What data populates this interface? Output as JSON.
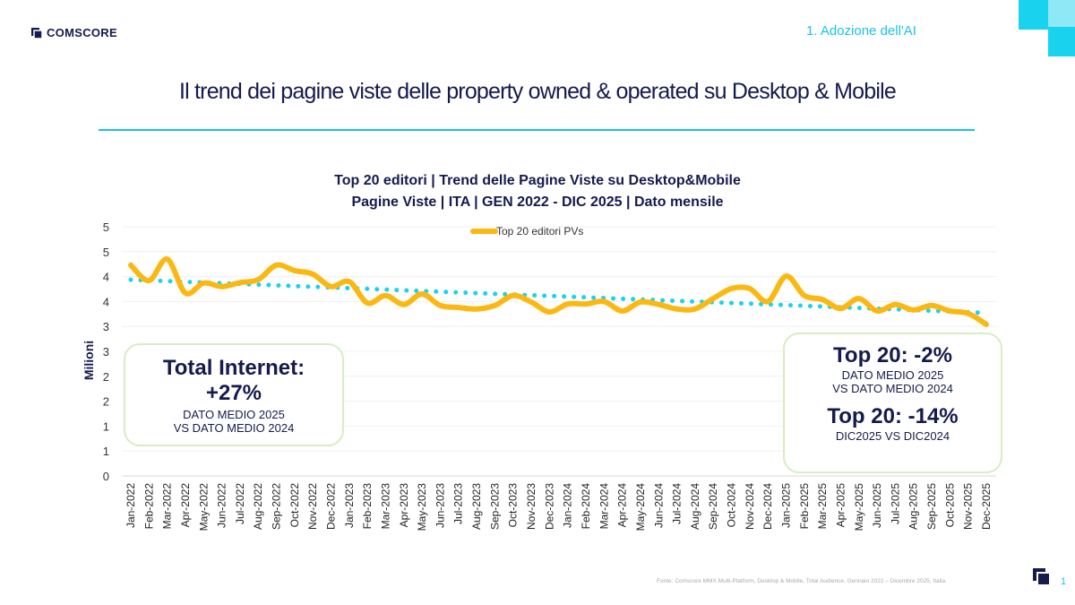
{
  "header": {
    "logo_text": "COMSCORE",
    "section": "1. Adozione dell'AI"
  },
  "page_title": "Il trend dei pagine viste delle property owned & operated su Desktop & Mobile",
  "colors": {
    "accent": "#19c3e6",
    "navy": "#141b4d",
    "series": "#fbb812",
    "trend": "#19d3ee"
  },
  "chart_data": {
    "type": "line",
    "title_line1": "Top 20 editori | Trend delle Pagine Viste su Desktop&Mobile",
    "title_line2": "Pagine Viste | ITA | GEN 2022 - DIC 2025 | Dato mensile",
    "ylabel": "Milioni",
    "ylim": [
      0,
      5
    ],
    "ytick_labels": [
      "0",
      "1",
      "1",
      "2",
      "2",
      "3",
      "3",
      "4",
      "4",
      "5",
      "5"
    ],
    "legend": "top",
    "grid": true,
    "trendline": "linear, dotted",
    "categories": [
      "Jan-2022",
      "Feb-2022",
      "Mar-2022",
      "Apr-2022",
      "May-2022",
      "Jun-2022",
      "Jul-2022",
      "Aug-2022",
      "Sep-2022",
      "Oct-2022",
      "Nov-2022",
      "Dec-2022",
      "Jan-2023",
      "Feb-2023",
      "Mar-2023",
      "Apr-2023",
      "May-2023",
      "Jun-2023",
      "Jul-2023",
      "Aug-2023",
      "Sep-2023",
      "Oct-2023",
      "Nov-2023",
      "Dec-2023",
      "Jan-2024",
      "Feb-2024",
      "Mar-2024",
      "Apr-2024",
      "May-2024",
      "Jun-2024",
      "Jul-2024",
      "Aug-2024",
      "Sep-2024",
      "Oct-2024",
      "Nov-2024",
      "Dec-2024",
      "Jan-2025",
      "Feb-2025",
      "Mar-2025",
      "Apr-2025",
      "May-2025",
      "Jun-2025",
      "Jul-2025",
      "Aug-2025",
      "Sep-2025",
      "Oct-2025",
      "Nov-2025",
      "Dec-2025"
    ],
    "series": [
      {
        "name": "Top 20 editori PVs",
        "values": [
          4.23,
          3.92,
          4.35,
          3.67,
          3.87,
          3.8,
          3.88,
          3.94,
          4.23,
          4.12,
          4.05,
          3.8,
          3.9,
          3.47,
          3.62,
          3.44,
          3.65,
          3.42,
          3.38,
          3.35,
          3.42,
          3.62,
          3.49,
          3.29,
          3.45,
          3.45,
          3.5,
          3.31,
          3.49,
          3.44,
          3.35,
          3.35,
          3.56,
          3.76,
          3.76,
          3.5,
          4.01,
          3.62,
          3.54,
          3.36,
          3.56,
          3.31,
          3.44,
          3.33,
          3.42,
          3.31,
          3.26,
          3.04
        ]
      }
    ]
  },
  "callout_left": {
    "headline": "Total Internet:",
    "value": "+27%",
    "line1": "DATO MEDIO 2025",
    "line2": "VS DATO MEDIO 2024"
  },
  "callout_right": {
    "headline1": "Top 20: -2%",
    "line1": "DATO MEDIO 2025",
    "line2": "VS DATO MEDIO 2024",
    "headline2": "Top 20: -14%",
    "line3": "DIC2025 VS DIC2024"
  },
  "footer": {
    "source": "Fonte: Comscore MMX Multi-Platform, Desktop & Mobile, Total Audience, Gennaio 2022 – Dicembre 2025, Italia.",
    "page_number": "1"
  }
}
